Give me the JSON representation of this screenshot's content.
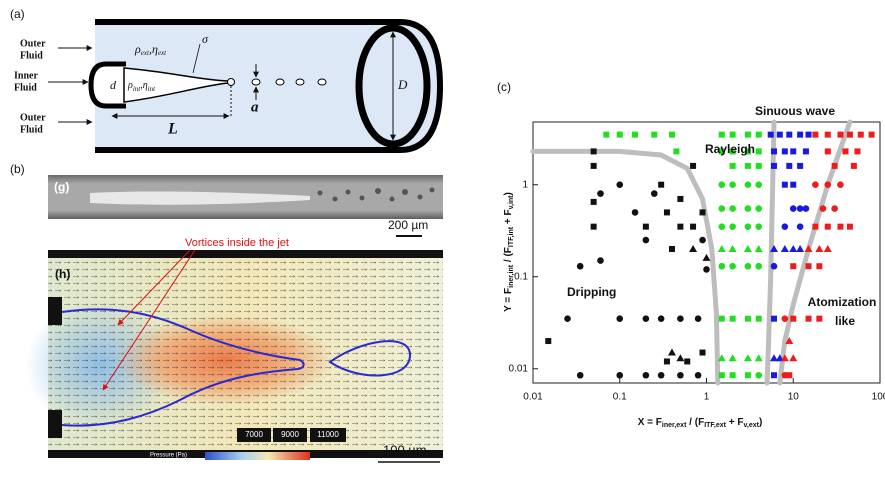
{
  "panel_a": {
    "label": "(a)",
    "outer_fluid_top": [
      "Outer",
      "Fluid"
    ],
    "inner_fluid": [
      "Inner",
      "Fluid"
    ],
    "outer_fluid_bottom": [
      "Outer",
      "Fluid"
    ],
    "outer_props": [
      "ρ",
      "ext",
      ",η",
      "ext"
    ],
    "inner_props": [
      "ρ",
      "int",
      ",η",
      "int"
    ],
    "sigma": "σ",
    "d": "d",
    "L": "L",
    "a": "a",
    "D": "D"
  },
  "panel_b": {
    "label": "(b)",
    "g_label": "(g)",
    "g_scale": "200 µm",
    "h_label": "(h)",
    "vortex_note": "Vortices inside the jet",
    "colorbar_ticks": [
      7000,
      9000,
      11000
    ],
    "colorbar_title": "Pressure (Pa)",
    "h_scale": "100 µm"
  },
  "chart_data": {
    "type": "scatter",
    "panel_label": "(c)",
    "x_label": [
      "X = F",
      "iner,ext",
      " / (F",
      "ITF,ext",
      " + F",
      "v,ext",
      ")"
    ],
    "y_label": [
      "Y = F",
      "iner,int",
      " / (F",
      "ITF,int",
      " + F",
      "v,int",
      ")"
    ],
    "xlim": [
      0.01,
      100
    ],
    "ylim": [
      0.007,
      4.8
    ],
    "xticks": [
      0.01,
      0.1,
      1,
      10,
      100
    ],
    "yticks": [
      0.01,
      0.1,
      1
    ],
    "log_x": true,
    "log_y": true,
    "annotations": [
      "Sinuous wave",
      "Rayleigh",
      "Dripping",
      "Atomization",
      "like"
    ],
    "curve_color": "#bdbdbd",
    "curves": [
      {
        "x": [
          0.01,
          0.1,
          0.3,
          0.6,
          0.9,
          1.15,
          1.3,
          1.35
        ],
        "y": [
          2.3,
          2.3,
          2.1,
          1.5,
          0.7,
          0.2,
          0.04,
          0.007
        ]
      },
      {
        "x": [
          6,
          5.8,
          5.5,
          5.2,
          5.0
        ],
        "y": [
          4.8,
          1,
          0.1,
          0.02,
          0.007
        ]
      },
      {
        "x": [
          45,
          25,
          15,
          10,
          8,
          7
        ],
        "y": [
          4.8,
          1,
          0.2,
          0.05,
          0.02,
          0.007
        ]
      }
    ],
    "series": [
      {
        "color": "#111111",
        "marker": "square",
        "x": [
          0.05,
          0.05,
          0.05,
          0.05,
          0.015,
          0.2,
          0.35,
          0.5,
          0.7,
          0.5,
          0.9,
          0.7,
          0.3,
          0.4,
          0.9,
          0.35,
          0.6
        ],
        "y": [
          2.3,
          1.6,
          0.65,
          0.35,
          0.02,
          0.35,
          0.5,
          0.35,
          0.35,
          0.7,
          0.5,
          1.6,
          1.0,
          0.2,
          0.015,
          0.012,
          0.012
        ]
      },
      {
        "color": "#111111",
        "marker": "circle",
        "x": [
          0.035,
          0.035,
          0.025,
          0.06,
          0.06,
          0.1,
          0.15,
          0.2,
          0.25,
          0.1,
          0.2,
          0.3,
          0.5,
          0.8,
          0.1,
          0.2,
          0.3,
          0.5,
          0.8,
          1.0,
          0.9
        ],
        "y": [
          0.0085,
          0.13,
          0.035,
          0.8,
          0.15,
          1.0,
          0.5,
          0.25,
          0.8,
          0.035,
          0.035,
          0.035,
          0.035,
          0.035,
          0.0085,
          0.0085,
          0.0085,
          0.0085,
          0.0085,
          0.12,
          0.25
        ]
      },
      {
        "color": "#111111",
        "marker": "triangle",
        "x": [
          0.7,
          1.0,
          0.5,
          0.4
        ],
        "y": [
          0.2,
          0.16,
          0.013,
          0.015
        ]
      },
      {
        "color": "#22dd22",
        "marker": "square",
        "x": [
          0.07,
          0.1,
          0.15,
          0.25,
          0.4,
          0.45,
          1.5,
          2,
          3,
          4,
          2,
          3,
          4,
          1.5,
          2,
          3,
          4,
          1.5,
          2,
          3,
          4,
          2,
          3,
          1.5
        ],
        "y": [
          3.5,
          3.5,
          3.5,
          3.5,
          3.5,
          2.3,
          3.5,
          3.5,
          3.5,
          3.5,
          2.3,
          2.3,
          2.3,
          2.3,
          1.6,
          1.6,
          1.6,
          0.035,
          0.035,
          0.035,
          0.035,
          0.0085,
          0.0085,
          0.0085
        ]
      },
      {
        "color": "#22dd22",
        "marker": "circle",
        "x": [
          1.5,
          2,
          3,
          4,
          1.5,
          2,
          3,
          4,
          1.5,
          2,
          3,
          4,
          1.5,
          2,
          3,
          4,
          4
        ],
        "y": [
          1.0,
          1.0,
          1.0,
          1.0,
          0.55,
          0.55,
          0.55,
          0.55,
          0.35,
          0.35,
          0.35,
          0.35,
          0.13,
          0.13,
          0.13,
          0.13,
          0.0085
        ]
      },
      {
        "color": "#22dd22",
        "marker": "triangle",
        "x": [
          1.5,
          2,
          3,
          4,
          1.5,
          2,
          3,
          4
        ],
        "y": [
          0.2,
          0.2,
          0.2,
          0.2,
          0.013,
          0.013,
          0.013,
          0.013
        ]
      },
      {
        "color": "#1a1adf",
        "marker": "square",
        "x": [
          5.5,
          7,
          9,
          12,
          15,
          6,
          8,
          10,
          14,
          6,
          9,
          12,
          8,
          10,
          6,
          6
        ],
        "y": [
          3.5,
          3.5,
          3.5,
          3.5,
          3.5,
          2.3,
          2.3,
          2.3,
          2.3,
          1.6,
          1.6,
          1.6,
          1.0,
          1.0,
          0.035,
          0.0085
        ]
      },
      {
        "color": "#1a1adf",
        "marker": "circle",
        "x": [
          10,
          12,
          14,
          12,
          6,
          8
        ],
        "y": [
          0.55,
          0.55,
          0.55,
          0.35,
          0.13,
          0.35
        ]
      },
      {
        "color": "#1a1adf",
        "marker": "triangle",
        "x": [
          6,
          8,
          10,
          12,
          6,
          7
        ],
        "y": [
          0.2,
          0.2,
          0.2,
          0.2,
          0.013,
          0.013
        ]
      },
      {
        "color": "#ee1c1c",
        "marker": "square",
        "x": [
          18,
          25,
          35,
          45,
          60,
          80,
          25,
          40,
          55,
          30,
          50,
          18,
          25,
          35,
          45,
          10,
          15,
          20,
          10,
          15,
          20,
          9
        ],
        "y": [
          3.5,
          3.5,
          3.5,
          3.5,
          3.5,
          3.5,
          2.3,
          2.3,
          2.3,
          1.6,
          1.6,
          0.35,
          0.35,
          0.35,
          0.35,
          0.13,
          0.13,
          0.13,
          0.035,
          0.035,
          0.035,
          0.0085
        ]
      },
      {
        "color": "#ee1c1c",
        "marker": "circle",
        "x": [
          18,
          25,
          35,
          22,
          30,
          8,
          8
        ],
        "y": [
          1.0,
          1.0,
          1.0,
          0.55,
          0.55,
          0.035,
          0.0085
        ]
      },
      {
        "color": "#ee1c1c",
        "marker": "triangle",
        "x": [
          15,
          20,
          25,
          8,
          10,
          9
        ],
        "y": [
          0.2,
          0.2,
          0.2,
          0.013,
          0.013,
          0.02
        ]
      }
    ]
  }
}
